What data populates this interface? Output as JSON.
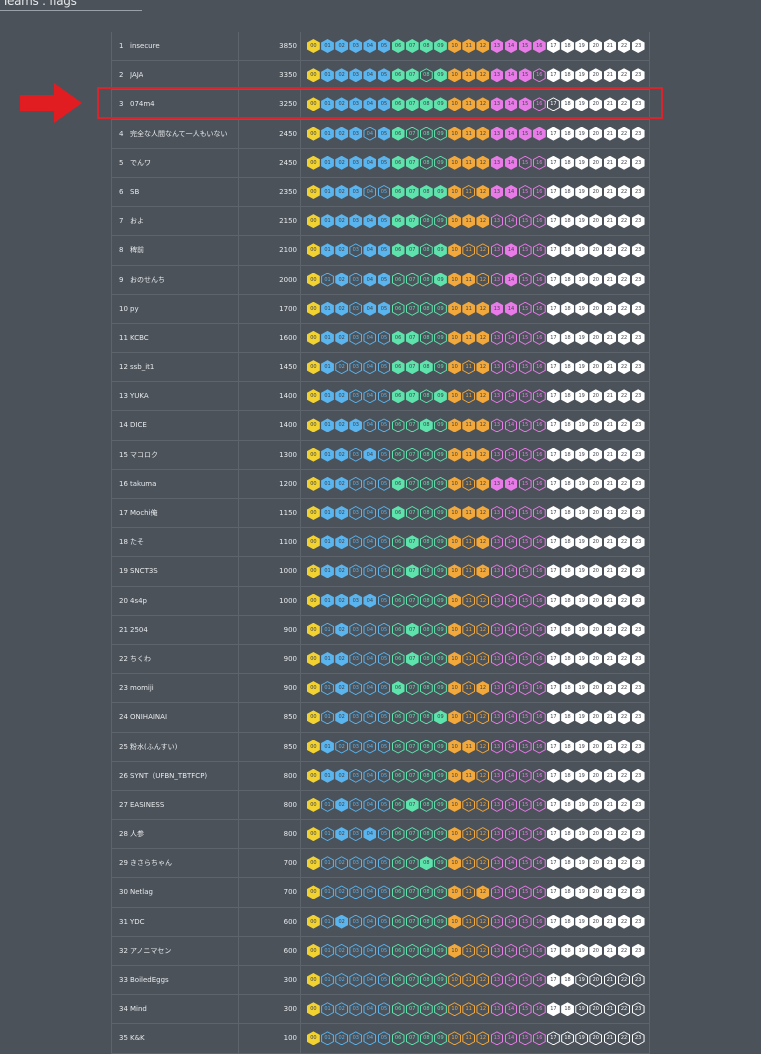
{
  "page": {
    "title": "Teams : flags"
  },
  "colors": {
    "background": "#4b525a",
    "flag_text_dark": "#3d434a",
    "highlight": "#d8242a",
    "groups": [
      {
        "ids": [
          0
        ],
        "color": "#f2d231"
      },
      {
        "ids": [
          1,
          2,
          3,
          4,
          5
        ],
        "color": "#5ab4ee"
      },
      {
        "ids": [
          6,
          7,
          8,
          9
        ],
        "color": "#5fe3ad"
      },
      {
        "ids": [
          10,
          11,
          12
        ],
        "color": "#f2a83a"
      },
      {
        "ids": [
          13,
          14,
          15,
          16
        ],
        "color": "#e97be8"
      },
      {
        "ids": [
          17,
          18,
          19,
          20,
          21,
          22,
          23
        ],
        "color": "#ffffff"
      }
    ]
  },
  "flag_labels": [
    "00",
    "01",
    "02",
    "03",
    "04",
    "05",
    "06",
    "07",
    "08",
    "09",
    "10",
    "11",
    "12",
    "13",
    "14",
    "15",
    "16",
    "17",
    "18",
    "19",
    "20",
    "21",
    "22",
    "23"
  ],
  "teams": [
    {
      "rank": "1",
      "name": "insecure",
      "score": "3850",
      "solved": "111111111111111111111111"
    },
    {
      "rank": "2",
      "name": "JAJA",
      "score": "3350",
      "solved": "111111110111111101111111"
    },
    {
      "rank": "3",
      "name": "074m4",
      "score": "3250",
      "solved": "111111111111111100111111"
    },
    {
      "rank": "4",
      "name": "完全な人間なんて一人もいない",
      "score": "2450",
      "solved": "111101100011111111111111"
    },
    {
      "rank": "5",
      "name": "でんワ",
      "score": "2450",
      "solved": "111111110011111001111111"
    },
    {
      "rank": "6",
      "name": "SB",
      "score": "2350",
      "solved": "111100111110111001111111"
    },
    {
      "rank": "7",
      "name": "およ",
      "score": "2150",
      "solved": "111111110011100001111111"
    },
    {
      "rank": "8",
      "name": "稗前",
      "score": "2100",
      "solved": "111011110110001001111111"
    },
    {
      "rank": "9",
      "name": "おのせんち",
      "score": "2000",
      "solved": "101011000111001001111111"
    },
    {
      "rank": "10",
      "name": "py",
      "score": "1700",
      "solved": "111011000011111001111111"
    },
    {
      "rank": "11",
      "name": "KCBC",
      "score": "1600",
      "solved": "111000110011100001111111"
    },
    {
      "rank": "12",
      "name": "ssb_it1",
      "score": "1450",
      "solved": "110000111010100001111111"
    },
    {
      "rank": "13",
      "name": "YUKA",
      "score": "1400",
      "solved": "111000110110100001111111"
    },
    {
      "rank": "14",
      "name": "DICE",
      "score": "1400",
      "solved": "111100001011100001111111"
    },
    {
      "rank": "15",
      "name": "マコロク",
      "score": "1300",
      "solved": "111010000011100001111111"
    },
    {
      "rank": "16",
      "name": "takuma",
      "score": "1200",
      "solved": "111000100010111001111111"
    },
    {
      "rank": "17",
      "name": "Mochi俺",
      "score": "1150",
      "solved": "111000100011100001111111"
    },
    {
      "rank": "18",
      "name": "たそ",
      "score": "1100",
      "solved": "111000010010100001111111"
    },
    {
      "rank": "19",
      "name": "SNCT3S",
      "score": "1000",
      "solved": "111000010010100001111111"
    },
    {
      "rank": "20",
      "name": "4s4p",
      "score": "1000",
      "solved": "111110000010000001111111"
    },
    {
      "rank": "21",
      "name": "2504",
      "score": "900",
      "solved": "101000010010000001111111"
    },
    {
      "rank": "22",
      "name": "ちくわ",
      "score": "900",
      "solved": "111000010010000001111111"
    },
    {
      "rank": "23",
      "name": "momiji",
      "score": "900",
      "solved": "101000100010100001111111"
    },
    {
      "rank": "24",
      "name": "ONIHAINAI",
      "score": "850",
      "solved": "101000000110000001111111"
    },
    {
      "rank": "25",
      "name": "粉水(ふんすい)",
      "score": "850",
      "solved": "110000000011000001111111"
    },
    {
      "rank": "26",
      "name": "SYNT（UFBN_TBTFCP)",
      "score": "800",
      "solved": "111000000011000001111111"
    },
    {
      "rank": "27",
      "name": "EASINESS",
      "score": "800",
      "solved": "101000010010000001111111"
    },
    {
      "rank": "28",
      "name": "人参",
      "score": "800",
      "solved": "101010000010000001111111"
    },
    {
      "rank": "29",
      "name": "きさらちゃん",
      "score": "700",
      "solved": "100000001010000001111111"
    },
    {
      "rank": "30",
      "name": "Netlag",
      "score": "700",
      "solved": "100000000010100001111111"
    },
    {
      "rank": "31",
      "name": "YDC",
      "score": "600",
      "solved": "101000000010000001111111"
    },
    {
      "rank": "32",
      "name": "アノニマセン",
      "score": "600",
      "solved": "100000000010000001111111"
    },
    {
      "rank": "33",
      "name": "BoiledEggs",
      "score": "300",
      "solved": "100000000000000001100000"
    },
    {
      "rank": "34",
      "name": "Mind",
      "score": "300",
      "solved": "100000000000000001100000"
    },
    {
      "rank": "35",
      "name": "K&K",
      "score": "100",
      "solved": "100000000000000000000000"
    }
  ],
  "highlight_rank": "3"
}
